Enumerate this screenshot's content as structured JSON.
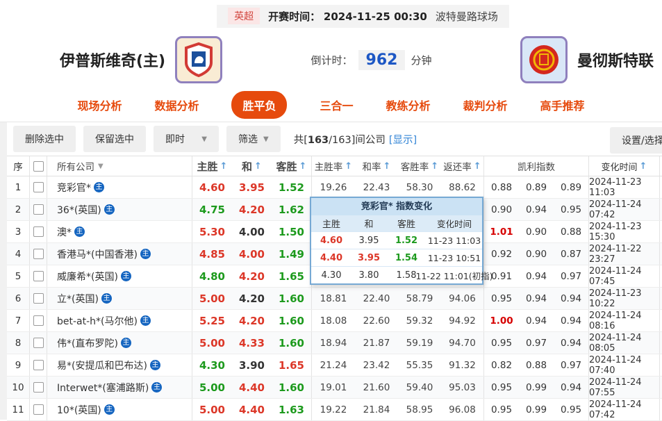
{
  "top_bar": {
    "league": "英超",
    "start_label": "开赛时间：",
    "start_time": "2024-11-25 00:30",
    "venue": "波特曼路球场"
  },
  "match_header": {
    "home_name": "伊普斯维奇(主)",
    "away_name": "曼彻斯特联",
    "countdown_label": "倒计时：",
    "countdown_value": "962",
    "countdown_unit": "分钟"
  },
  "nav": {
    "tabs": [
      {
        "label": "现场分析",
        "active": false
      },
      {
        "label": "数据分析",
        "active": false
      },
      {
        "label": "胜平负",
        "active": true
      },
      {
        "label": "三合一",
        "active": false
      },
      {
        "label": "教练分析",
        "active": false
      },
      {
        "label": "裁判分析",
        "active": false
      },
      {
        "label": "高手推荐",
        "active": false
      }
    ]
  },
  "toolbar": {
    "delete_btn": "删除选中",
    "keep_btn": "保留选中",
    "live_dropdown": "即时",
    "filter_dropdown": "筛选",
    "count_prefix": "共[",
    "count_total": "163",
    "count_suffix": "/163]间公司",
    "show_link": "[显示]",
    "settings_btn": "设置/选择"
  },
  "table": {
    "header": {
      "seq": "序",
      "company": "所有公司",
      "home": "主胜",
      "draw": "和",
      "away": "客胜",
      "home_rate": "主胜率",
      "draw_rate": "和率",
      "away_rate": "客胜率",
      "return_rate": "返还率",
      "kelly": "凯利指数",
      "change_time": "变化时间"
    },
    "rows": [
      {
        "no": "1",
        "company": "竞彩官*",
        "odds": [
          {
            "v": "4.60",
            "c": "red"
          },
          {
            "v": "3.95",
            "c": "red"
          },
          {
            "v": "1.52",
            "c": "green"
          }
        ],
        "rates": [
          "19.26",
          "22.43",
          "58.30",
          "88.62"
        ],
        "kelly": [
          {
            "v": "0.88",
            "c": ""
          },
          {
            "v": "0.89",
            "c": ""
          },
          {
            "v": "0.89",
            "c": ""
          }
        ],
        "time": "2024-11-23 11:03"
      },
      {
        "no": "2",
        "company": "36*(英国)",
        "odds": [
          {
            "v": "4.75",
            "c": "green"
          },
          {
            "v": "4.20",
            "c": "red"
          },
          {
            "v": "1.62",
            "c": "green"
          }
        ],
        "rates": [
          "",
          "",
          "",
          ""
        ],
        "kelly": [
          {
            "v": "0.90",
            "c": ""
          },
          {
            "v": "0.94",
            "c": ""
          },
          {
            "v": "0.95",
            "c": ""
          }
        ],
        "time": "2024-11-24 07:42"
      },
      {
        "no": "3",
        "company": "澳*",
        "odds": [
          {
            "v": "5.30",
            "c": "red"
          },
          {
            "v": "4.00",
            "c": ""
          },
          {
            "v": "1.50",
            "c": "green"
          }
        ],
        "rates": [
          "",
          "",
          "",
          ""
        ],
        "kelly": [
          {
            "v": "1.01",
            "c": "kelly-red"
          },
          {
            "v": "0.90",
            "c": ""
          },
          {
            "v": "0.88",
            "c": ""
          }
        ],
        "time": "2024-11-23 15:30"
      },
      {
        "no": "4",
        "company": "香港马*(中国香港)",
        "odds": [
          {
            "v": "4.85",
            "c": "red"
          },
          {
            "v": "4.00",
            "c": "red"
          },
          {
            "v": "1.49",
            "c": "green"
          }
        ],
        "rates": [
          "",
          "",
          "",
          ""
        ],
        "kelly": [
          {
            "v": "0.92",
            "c": ""
          },
          {
            "v": "0.90",
            "c": ""
          },
          {
            "v": "0.87",
            "c": ""
          }
        ],
        "time": "2024-11-22 23:27"
      },
      {
        "no": "5",
        "company": "威廉希*(英国)",
        "odds": [
          {
            "v": "4.80",
            "c": "green"
          },
          {
            "v": "4.20",
            "c": "red"
          },
          {
            "v": "1.65",
            "c": "green"
          }
        ],
        "rates": [
          "",
          "",
          "",
          ""
        ],
        "kelly": [
          {
            "v": "0.91",
            "c": ""
          },
          {
            "v": "0.94",
            "c": ""
          },
          {
            "v": "0.97",
            "c": ""
          }
        ],
        "time": "2024-11-24 07:45"
      },
      {
        "no": "6",
        "company": "立*(英国)",
        "odds": [
          {
            "v": "5.00",
            "c": "red"
          },
          {
            "v": "4.20",
            "c": ""
          },
          {
            "v": "1.60",
            "c": "green"
          }
        ],
        "rates": [
          "18.81",
          "22.40",
          "58.79",
          "94.06"
        ],
        "kelly": [
          {
            "v": "0.95",
            "c": ""
          },
          {
            "v": "0.94",
            "c": ""
          },
          {
            "v": "0.94",
            "c": ""
          }
        ],
        "time": "2024-11-23 10:22"
      },
      {
        "no": "7",
        "company": "bet-at-h*(马尔他)",
        "odds": [
          {
            "v": "5.25",
            "c": "red"
          },
          {
            "v": "4.20",
            "c": "red"
          },
          {
            "v": "1.60",
            "c": "green"
          }
        ],
        "rates": [
          "18.08",
          "22.60",
          "59.32",
          "94.92"
        ],
        "kelly": [
          {
            "v": "1.00",
            "c": "kelly-red"
          },
          {
            "v": "0.94",
            "c": ""
          },
          {
            "v": "0.94",
            "c": ""
          }
        ],
        "time": "2024-11-24 08:16"
      },
      {
        "no": "8",
        "company": "伟*(直布罗陀)",
        "odds": [
          {
            "v": "5.00",
            "c": "red"
          },
          {
            "v": "4.33",
            "c": "red"
          },
          {
            "v": "1.60",
            "c": "green"
          }
        ],
        "rates": [
          "18.94",
          "21.87",
          "59.19",
          "94.70"
        ],
        "kelly": [
          {
            "v": "0.95",
            "c": ""
          },
          {
            "v": "0.97",
            "c": ""
          },
          {
            "v": "0.94",
            "c": ""
          }
        ],
        "time": "2024-11-24 08:05"
      },
      {
        "no": "9",
        "company": "易*(安提瓜和巴布达)",
        "odds": [
          {
            "v": "4.30",
            "c": "green"
          },
          {
            "v": "3.90",
            "c": ""
          },
          {
            "v": "1.65",
            "c": "red"
          }
        ],
        "rates": [
          "21.24",
          "23.42",
          "55.35",
          "91.32"
        ],
        "kelly": [
          {
            "v": "0.82",
            "c": ""
          },
          {
            "v": "0.88",
            "c": ""
          },
          {
            "v": "0.97",
            "c": ""
          }
        ],
        "time": "2024-11-24 07:40"
      },
      {
        "no": "10",
        "company": "Interwet*(塞浦路斯)",
        "odds": [
          {
            "v": "5.00",
            "c": "green"
          },
          {
            "v": "4.40",
            "c": "red"
          },
          {
            "v": "1.60",
            "c": "green"
          }
        ],
        "rates": [
          "19.01",
          "21.60",
          "59.40",
          "95.03"
        ],
        "kelly": [
          {
            "v": "0.95",
            "c": ""
          },
          {
            "v": "0.99",
            "c": ""
          },
          {
            "v": "0.94",
            "c": ""
          }
        ],
        "time": "2024-11-24 07:55"
      },
      {
        "no": "11",
        "company": "10*(英国)",
        "odds": [
          {
            "v": "5.00",
            "c": "red"
          },
          {
            "v": "4.40",
            "c": "red"
          },
          {
            "v": "1.63",
            "c": "green"
          }
        ],
        "rates": [
          "19.22",
          "21.84",
          "58.95",
          "96.08"
        ],
        "kelly": [
          {
            "v": "0.95",
            "c": ""
          },
          {
            "v": "0.99",
            "c": ""
          },
          {
            "v": "0.95",
            "c": ""
          }
        ],
        "time": "2024-11-24 07:42"
      }
    ],
    "primary_badge": "主"
  },
  "popup": {
    "title": "竞彩官* 指数变化",
    "headers": [
      "主胜",
      "和",
      "客胜",
      "变化时间"
    ],
    "rows": [
      {
        "cells": [
          {
            "v": "4.60",
            "c": "red"
          },
          {
            "v": "3.95",
            "c": ""
          },
          {
            "v": "1.52",
            "c": "green"
          }
        ],
        "time": "11-23 11:03"
      },
      {
        "cells": [
          {
            "v": "4.40",
            "c": "red"
          },
          {
            "v": "3.95",
            "c": "red"
          },
          {
            "v": "1.54",
            "c": "green"
          }
        ],
        "time": "11-23 10:51"
      },
      {
        "cells": [
          {
            "v": "4.30",
            "c": ""
          },
          {
            "v": "3.80",
            "c": ""
          },
          {
            "v": "1.58",
            "c": ""
          }
        ],
        "time": "11-22 11:01(初指)"
      }
    ]
  },
  "colors": {
    "accent": "#e64a0d",
    "odds_up_red": "#dc3728",
    "odds_down_green": "#1d9a1d",
    "kelly_alert_red": "#d60000",
    "link_blue": "#3385d6",
    "countdown_blue": "#1d57c4"
  }
}
